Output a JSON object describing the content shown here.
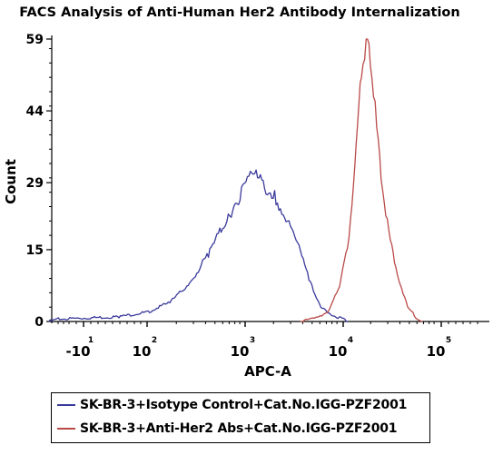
{
  "chart_data": {
    "type": "line",
    "title": "FACS Analysis of Anti-Human Her2 Antibody Internalization",
    "xlabel": "APC-A",
    "ylabel": "Count",
    "x_scale": "biexponential (log decades)",
    "xlim": [
      -20,
      300000
    ],
    "ylim": [
      0,
      59
    ],
    "y_ticks": [
      0,
      15,
      29,
      44,
      59
    ],
    "x_ticks": [
      {
        "base": "-10",
        "exp": "1"
      },
      {
        "base": "10",
        "exp": "2"
      },
      {
        "base": "10",
        "exp": "3"
      },
      {
        "base": "10",
        "exp": "4"
      },
      {
        "base": "10",
        "exp": "5"
      }
    ],
    "grid": false,
    "legend_position": "bottom",
    "series": [
      {
        "name": "SK-BR-3+Isotype Control+Cat.No.IGG-PZF2001",
        "color": "#3a3a9c",
        "x": [
          -15,
          -5,
          30,
          60,
          100,
          160,
          250,
          400,
          700,
          1200,
          2000,
          2800,
          3600,
          4400,
          5200,
          6100,
          6800
        ],
        "y": [
          0,
          0.5,
          1,
          2,
          4,
          8,
          14,
          22,
          31,
          26,
          17,
          8,
          3,
          1.5,
          1,
          0.5,
          0
        ]
      },
      {
        "name": "SK-BR-3+Anti-Her2 Abs+Cat.No.IGG-PZF2001",
        "color": "#b94a48",
        "x": [
          2200,
          3000,
          4200,
          5600,
          7000,
          8300,
          9400,
          10500,
          11600,
          13000,
          15000,
          18000,
          22000,
          28000,
          34000,
          40000
        ],
        "y": [
          0,
          0.5,
          2,
          7,
          18,
          36,
          53,
          59,
          55,
          44,
          30,
          18,
          10,
          3,
          1,
          0
        ]
      }
    ]
  }
}
